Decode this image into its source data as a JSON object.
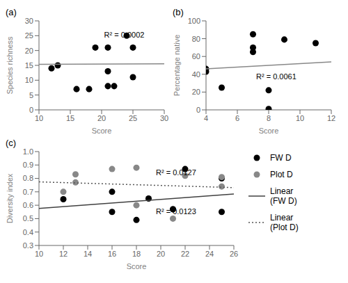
{
  "chart_data": [
    {
      "type": "scatter",
      "title": "(a)",
      "xlabel": "Score",
      "ylabel": "Species richness",
      "xlim": [
        10,
        30
      ],
      "ylim": [
        0,
        30
      ],
      "xticks": [
        10,
        15,
        20,
        25,
        30
      ],
      "yticks": [
        0,
        5,
        10,
        15,
        20,
        25,
        30
      ],
      "grid": false,
      "annotations": [
        "R² = 0.0002"
      ],
      "series": [
        {
          "type": "scatter",
          "color": "#000000",
          "marker": "circle",
          "x": [
            12,
            13,
            16,
            18,
            19,
            21,
            21,
            21,
            22,
            24,
            25,
            25
          ],
          "values": [
            14,
            15,
            7,
            7,
            21,
            21,
            13,
            8,
            8,
            25,
            11,
            21
          ]
        },
        {
          "type": "line",
          "color": "#888888",
          "line_style": "solid",
          "x": [
            10,
            30
          ],
          "values": [
            15.38,
            15.54
          ]
        }
      ]
    },
    {
      "type": "scatter",
      "title": "(b)",
      "xlabel": "Score",
      "ylabel": "Percentage native",
      "xlim": [
        4,
        12
      ],
      "ylim": [
        0,
        100
      ],
      "xticks": [
        4,
        6,
        8,
        10,
        12
      ],
      "yticks": [
        0,
        20,
        40,
        60,
        80,
        100
      ],
      "grid": false,
      "annotations": [
        "R² = 0.0061"
      ],
      "series": [
        {
          "type": "scatter",
          "color": "#000000",
          "marker": "circle",
          "x": [
            4,
            4,
            5,
            7,
            7,
            7,
            8,
            8,
            9,
            11
          ],
          "values": [
            46,
            43,
            25,
            85,
            70,
            65,
            1,
            22,
            79,
            75
          ]
        },
        {
          "type": "line",
          "color": "#888888",
          "line_style": "solid",
          "x": [
            4,
            12
          ],
          "values": [
            46,
            54
          ]
        }
      ]
    },
    {
      "type": "scatter",
      "title": "(c)",
      "xlabel": "Score",
      "ylabel": "Diversity index",
      "xlim": [
        10,
        26
      ],
      "ylim": [
        0.3,
        1.0
      ],
      "xticks": [
        10,
        12,
        14,
        16,
        18,
        20,
        22,
        24,
        26
      ],
      "yticks": [
        0.3,
        0.4,
        0.5,
        0.6,
        0.7,
        0.8,
        0.9,
        {
          "value": 1,
          "label": "1.0"
        }
      ],
      "grid": false,
      "legend": "right",
      "annotations": [
        "R² = 0.0127",
        "R² = 0.0123"
      ],
      "series": [
        {
          "name": "FW D",
          "type": "scatter",
          "color": "#000000",
          "marker": "circle",
          "x": [
            12,
            16,
            16,
            18,
            19,
            21,
            21,
            22,
            25,
            25
          ],
          "values": [
            0.645,
            0.7,
            0.55,
            0.49,
            0.65,
            0.57,
            0.57,
            0.87,
            0.8,
            0.55
          ]
        },
        {
          "name": "Plot D",
          "type": "scatter",
          "color": "#888888",
          "marker": "circle",
          "x": [
            12,
            13,
            13,
            16,
            18,
            18,
            21,
            22,
            25,
            25
          ],
          "values": [
            0.7,
            0.83,
            0.77,
            0.87,
            0.88,
            0.6,
            0.5,
            0.82,
            0.81,
            0.74
          ]
        },
        {
          "name": "Linear\n(FW D)",
          "type": "line",
          "color": "#404040",
          "line_style": "solid",
          "x": [
            10,
            26
          ],
          "values": [
            0.5757,
            0.6831
          ]
        },
        {
          "name": "Linear\n(Plot D)",
          "type": "line",
          "color": "#555555",
          "line_style": "dotted",
          "x": [
            10,
            26
          ],
          "values": [
            0.7741,
            0.7315
          ]
        }
      ]
    }
  ]
}
